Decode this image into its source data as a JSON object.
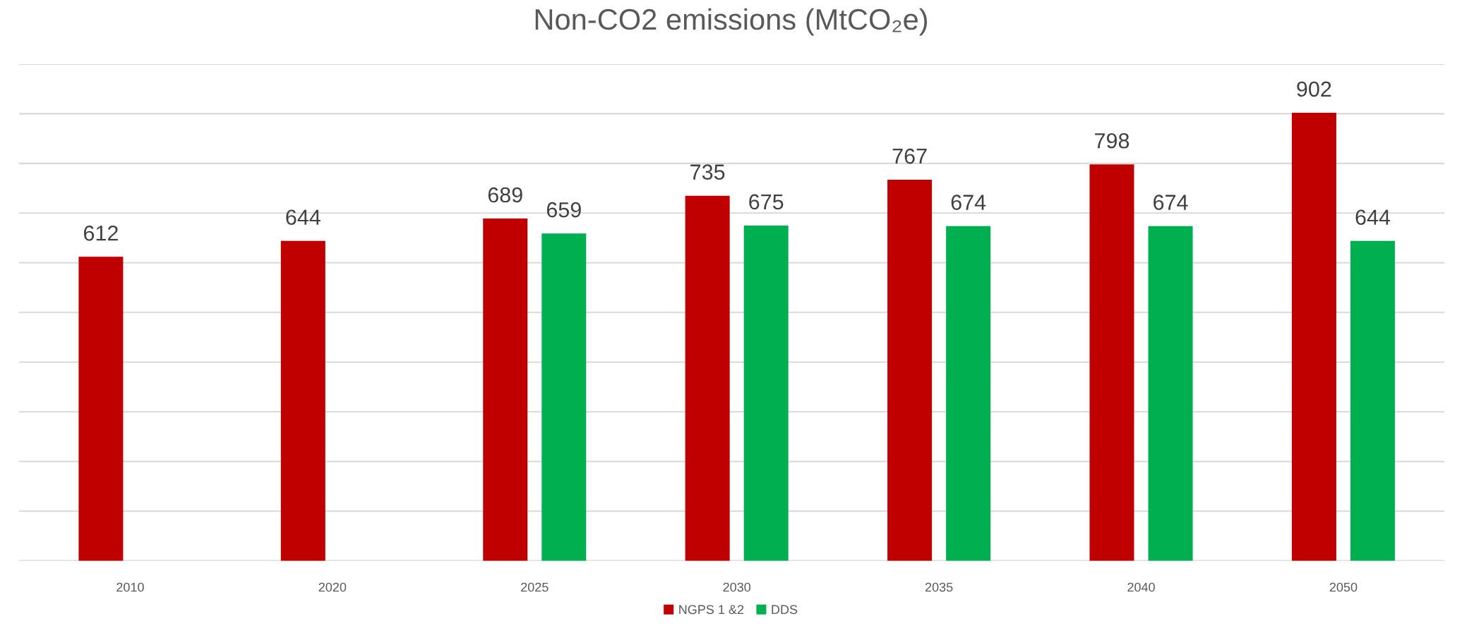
{
  "chart_data": {
    "type": "bar",
    "title": "Non-CO2 emissions (MtCO₂e)",
    "categories": [
      "2010",
      "2020",
      "2025",
      "2030",
      "2035",
      "2040",
      "2050"
    ],
    "series": [
      {
        "name": "NGPS 1 &2",
        "color": "#c00000",
        "values": [
          612,
          644,
          689,
          735,
          767,
          798,
          902
        ]
      },
      {
        "name": "DDS",
        "color": "#00b050",
        "values": [
          null,
          null,
          659,
          675,
          674,
          674,
          644
        ]
      }
    ],
    "ylim": [
      0,
      1000
    ],
    "yticks": [
      {
        "value": 0,
        "label": null
      },
      {
        "value": 100,
        "label": null
      },
      {
        "value": 200,
        "label": null
      },
      {
        "value": 300,
        "label": null
      },
      {
        "value": 400,
        "label": null
      },
      {
        "value": 500,
        "label": null
      },
      {
        "value": 600,
        "label": null
      },
      {
        "value": 700,
        "label": null
      },
      {
        "value": 800,
        "label": null
      },
      {
        "value": 900,
        "label": null
      },
      {
        "value": 1000,
        "label": null
      }
    ],
    "tick_labels": "x",
    "grid": "y",
    "data_labels": true,
    "legend": "bottom"
  }
}
